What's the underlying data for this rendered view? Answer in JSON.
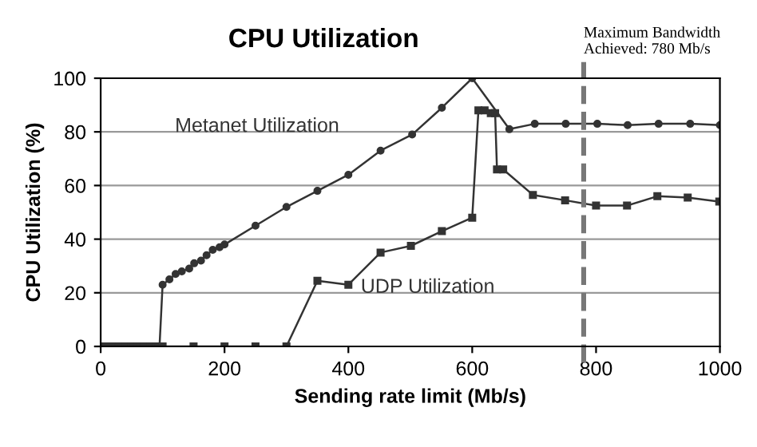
{
  "chart_data": {
    "type": "line",
    "title": "CPU Utilization",
    "xlabel": "Sending rate limit (Mb/s)",
    "ylabel": "CPU Utilization (%)",
    "xlim": [
      0,
      1000
    ],
    "xticks": [
      0,
      200,
      400,
      600,
      800,
      1000
    ],
    "ylim": [
      0,
      100
    ],
    "yticks": [
      0,
      20,
      40,
      60,
      80,
      100
    ],
    "grid": "y",
    "legend": false,
    "line_style": "solid",
    "series": [
      {
        "name": "Metanet Utilization",
        "color": "#333333",
        "marker": "circle",
        "x": [
          5,
          15,
          25,
          35,
          45,
          55,
          65,
          75,
          85,
          95,
          100,
          111,
          121,
          131,
          143,
          151,
          162,
          171,
          181,
          192,
          200,
          250,
          300,
          350,
          400,
          452,
          503,
          551,
          600,
          660,
          701,
          751,
          802,
          851,
          901,
          952,
          1000
        ],
        "values": [
          0,
          0,
          0,
          0,
          0,
          0,
          0,
          0,
          0,
          0,
          23,
          25,
          27,
          28,
          29,
          31,
          32,
          34,
          36,
          37,
          38,
          45,
          52,
          58,
          64,
          73,
          79,
          89,
          100,
          81,
          83,
          83,
          83,
          82.5,
          83,
          83,
          82.5
        ]
      },
      {
        "name": "UDP Utilization",
        "color": "#333333",
        "marker": "square",
        "x": [
          0,
          10,
          20,
          30,
          40,
          50,
          60,
          70,
          80,
          90,
          100,
          150,
          200,
          250,
          300,
          350,
          400,
          452,
          501,
          551,
          600,
          610,
          620,
          630,
          637,
          640,
          650,
          698,
          750,
          800,
          850,
          899,
          948,
          999
        ],
        "values": [
          0,
          0,
          0,
          0,
          0,
          0,
          0,
          0,
          0,
          0,
          0,
          0,
          0,
          0,
          0,
          24.5,
          23,
          35,
          37.5,
          43,
          48,
          88,
          88,
          87,
          87,
          66,
          66,
          56.5,
          54.5,
          52.5,
          52.5,
          56,
          55.5,
          54
        ]
      }
    ],
    "ref_lines": [
      {
        "axis": "x",
        "value": 780,
        "label": "Maximum Bandwidth\nAchieved: 780 Mb/s",
        "color": "#777777",
        "line_style": "dashed"
      }
    ]
  }
}
